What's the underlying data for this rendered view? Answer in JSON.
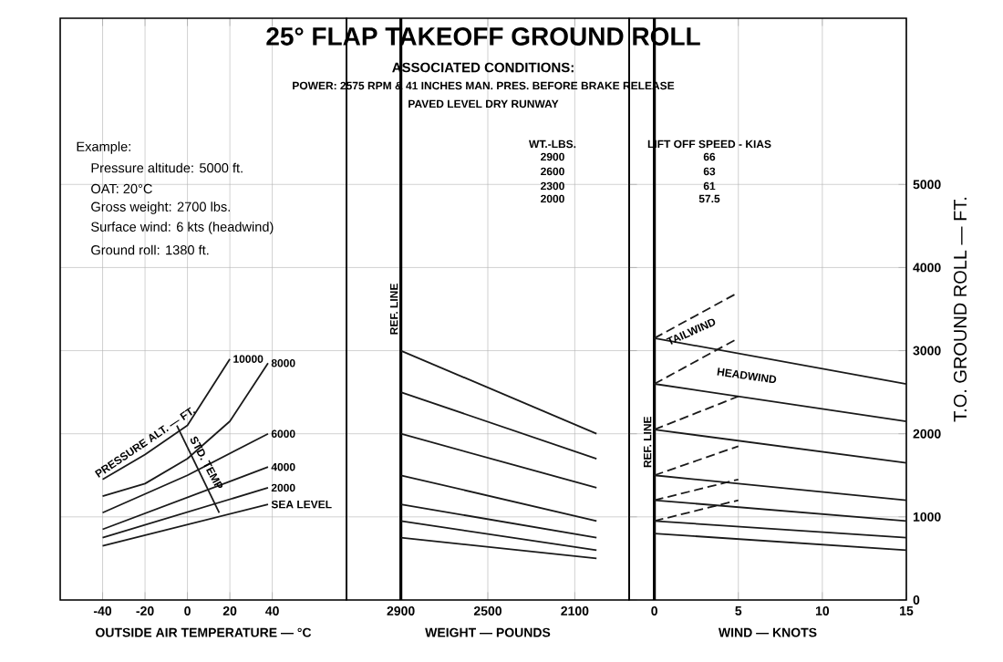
{
  "chart_data": [
    {
      "type": "line",
      "xlabel": "OUTSIDE AIR TEMPERATURE — °C",
      "annotations": [
        "Example:",
        "Pressure altitude: 5000 ft.",
        "OAT: 20°C",
        "Gross weight: 2700 lbs.",
        "Surface wind: 6 kts (headwind)",
        "Ground roll: 1380 ft.",
        "PRESSURE ALT. — FT.",
        "STD. TEMP"
      ],
      "series": [
        {
          "name": "10000",
          "color": "#1a1a1a",
          "x": [
            -40,
            -20,
            0,
            20
          ],
          "values": [
            1450,
            1750,
            2100,
            2900
          ]
        },
        {
          "name": "8000",
          "color": "#1a1a1a",
          "x": [
            -40,
            -20,
            0,
            20,
            38
          ],
          "values": [
            1250,
            1400,
            1700,
            2150,
            2850
          ]
        },
        {
          "name": "6000",
          "color": "#1a1a1a",
          "x": [
            -40,
            0,
            38
          ],
          "values": [
            1050,
            1500,
            2000
          ]
        },
        {
          "name": "4000",
          "color": "#1a1a1a",
          "x": [
            -40,
            38
          ],
          "values": [
            850,
            1600
          ]
        },
        {
          "name": "2000",
          "color": "#1a1a1a",
          "x": [
            -40,
            38
          ],
          "values": [
            750,
            1350
          ]
        },
        {
          "name": "SEA LEVEL",
          "color": "#1a1a1a",
          "x": [
            -40,
            38
          ],
          "values": [
            650,
            1150
          ]
        },
        {
          "color": "#1a1a1a",
          "x": [
            -5,
            15
          ],
          "values": [
            2100,
            1050
          ]
        }
      ],
      "xlim": [
        -60,
        75
      ],
      "ylim": [
        0,
        7000
      ],
      "xticks": [
        -40,
        -20,
        0,
        20,
        40
      ],
      "yticks": [
        0,
        1000,
        2000,
        3000,
        4000,
        5000
      ],
      "grid": true,
      "tick_labels": "x",
      "marker": "none",
      "line_style": "solid"
    },
    {
      "type": "line",
      "title": "25° FLAP TAKEOFF GROUND ROLL",
      "subtitle": "ASSOCIATED CONDITIONS:",
      "xlabel": "WEIGHT — POUNDS",
      "annotations": [
        "POWER: 2575 RPM & 41 INCHES MAN. PRES. BEFORE BRAKE RELEASE",
        "PAVED LEVEL DRY RUNWAY",
        "WT.-LBS.",
        "2900",
        "2600",
        "2300",
        "2000"
      ],
      "series": [
        {
          "color": "#1a1a1a",
          "x": [
            2900,
            2000
          ],
          "values": [
            3000,
            2000
          ]
        },
        {
          "color": "#1a1a1a",
          "x": [
            2900,
            2000
          ],
          "values": [
            2500,
            1700
          ]
        },
        {
          "color": "#1a1a1a",
          "x": [
            2900,
            2000
          ],
          "values": [
            2000,
            1350
          ]
        },
        {
          "color": "#1a1a1a",
          "x": [
            2900,
            2000
          ],
          "values": [
            1500,
            950
          ]
        },
        {
          "color": "#1a1a1a",
          "x": [
            2900,
            2000
          ],
          "values": [
            1150,
            750
          ]
        },
        {
          "color": "#1a1a1a",
          "x": [
            2900,
            2000
          ],
          "values": [
            950,
            600
          ]
        },
        {
          "color": "#1a1a1a",
          "x": [
            2900,
            2000
          ],
          "values": [
            750,
            500
          ]
        }
      ],
      "ref_lines": [
        {
          "axis": "x",
          "value": 2900,
          "label": "REF. LINE"
        }
      ],
      "xlim": [
        3150,
        1850
      ],
      "ylim": [
        0,
        7000
      ],
      "xticks": [
        2900,
        2500,
        2100
      ],
      "yticks": [
        0,
        1000,
        2000,
        3000,
        4000,
        5000
      ],
      "grid": true,
      "tick_labels": "x",
      "marker": "none",
      "line_style": "solid"
    },
    {
      "type": "line",
      "xlabel": "WIND — KNOTS",
      "ylabel": "T.O. GROUND ROLL — FT.",
      "annotations": [
        "LIFT OFF SPEED - KIAS",
        "66",
        "63",
        "61",
        "57.5",
        "TAILWIND",
        "HEADWIND"
      ],
      "series": [
        {
          "color": "#1a1a1a",
          "x": [
            0,
            15
          ],
          "values": [
            3150,
            2600
          ]
        },
        {
          "color": "#1a1a1a",
          "x": [
            0,
            15
          ],
          "values": [
            2600,
            2150
          ]
        },
        {
          "color": "#1a1a1a",
          "x": [
            0,
            15
          ],
          "values": [
            2050,
            1650
          ]
        },
        {
          "color": "#1a1a1a",
          "x": [
            0,
            15
          ],
          "values": [
            1500,
            1200
          ]
        },
        {
          "color": "#1a1a1a",
          "x": [
            0,
            15
          ],
          "values": [
            1200,
            950
          ]
        },
        {
          "color": "#1a1a1a",
          "x": [
            0,
            15
          ],
          "values": [
            950,
            750
          ]
        },
        {
          "color": "#1a1a1a",
          "x": [
            0,
            15
          ],
          "values": [
            800,
            600
          ]
        },
        {
          "color": "#1a1a1a",
          "x": [
            0,
            5
          ],
          "values": [
            3150,
            3700
          ],
          "line_style": "dashed"
        },
        {
          "color": "#1a1a1a",
          "x": [
            0,
            5
          ],
          "values": [
            2600,
            3150
          ],
          "line_style": "dashed"
        },
        {
          "color": "#1a1a1a",
          "x": [
            0,
            5
          ],
          "values": [
            2050,
            2450
          ],
          "line_style": "dashed"
        },
        {
          "color": "#1a1a1a",
          "x": [
            0,
            5
          ],
          "values": [
            1500,
            1850
          ],
          "line_style": "dashed"
        },
        {
          "color": "#1a1a1a",
          "x": [
            0,
            5
          ],
          "values": [
            1200,
            1450
          ],
          "line_style": "dashed"
        },
        {
          "color": "#1a1a1a",
          "x": [
            0,
            5
          ],
          "values": [
            950,
            1200
          ],
          "line_style": "dashed"
        }
      ],
      "ref_lines": [
        {
          "axis": "x",
          "value": 0,
          "label": "REF. LINE"
        }
      ],
      "xlim": [
        -1.5,
        15
      ],
      "ylim": [
        0,
        7000
      ],
      "xticks": [
        0,
        5,
        10,
        15
      ],
      "yticks": [
        0,
        1000,
        2000,
        3000,
        4000,
        5000
      ],
      "grid": true,
      "marker": "none",
      "line_style": "solid"
    }
  ]
}
